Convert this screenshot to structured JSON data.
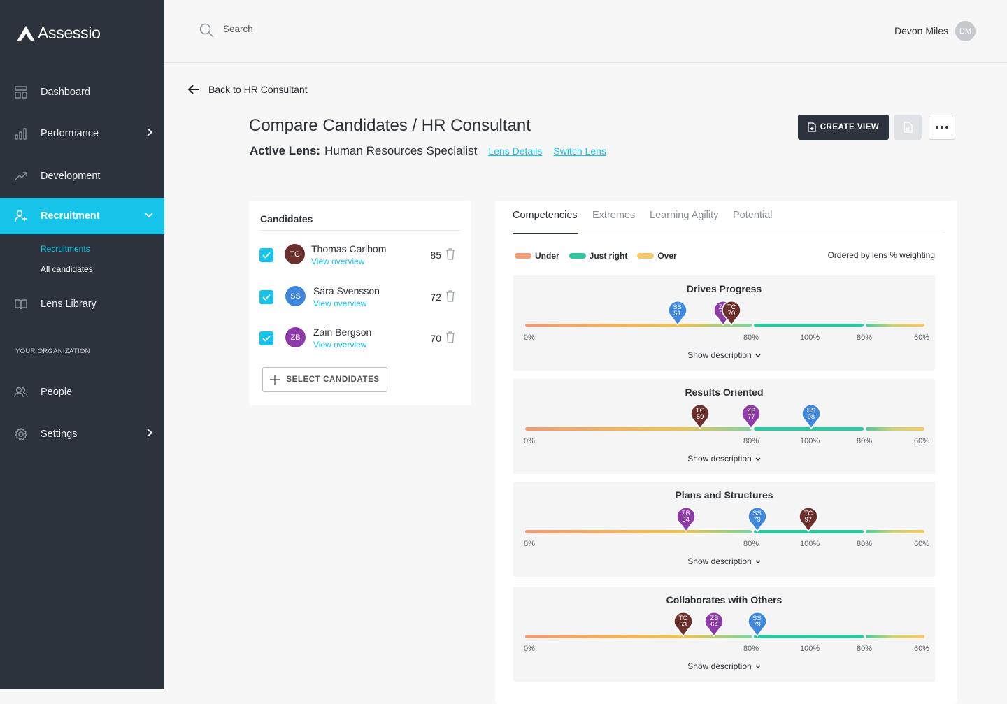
{
  "app": {
    "name": "Assessio"
  },
  "sidebar": {
    "items": [
      {
        "label": "Dashboard"
      },
      {
        "label": "Performance"
      },
      {
        "label": "Development"
      },
      {
        "label": "Recruitment"
      },
      {
        "label": "Lens Library"
      },
      {
        "label": "People"
      },
      {
        "label": "Settings"
      }
    ],
    "sub_items": [
      {
        "label": "Recruitments"
      },
      {
        "label": "All candidates"
      }
    ],
    "org_label": "YOUR ORGANIZATION"
  },
  "topbar": {
    "search_placeholder": "Search",
    "user_name": "Devon Miles",
    "user_initials": "DM"
  },
  "page": {
    "back_label": "Back to HR Consultant",
    "title": "Compare Candidates / HR Consultant",
    "active_lens_label": "Active Lens:",
    "active_lens_value": "Human Resources Specialist",
    "lens_details": "Lens Details",
    "switch_lens": "Switch Lens",
    "create_view": "CREATE VIEW"
  },
  "candidates": {
    "title": "Candidates",
    "view_overview": "View overview",
    "select_button": "SELECT CANDIDATES",
    "list": [
      {
        "name": "Thomas Carlbom",
        "initials": "TC",
        "score": "85",
        "color": "#6b2f2c"
      },
      {
        "name": "Sara Svensson",
        "initials": "SS",
        "score": "72",
        "color": "#3f86de"
      },
      {
        "name": "Zain Bergson",
        "initials": "ZB",
        "score": "70",
        "color": "#8e3aa8"
      }
    ]
  },
  "panel": {
    "tabs": [
      {
        "label": "Competencies"
      },
      {
        "label": "Extremes"
      },
      {
        "label": "Learning Agility"
      },
      {
        "label": "Potential"
      }
    ],
    "legend": [
      {
        "label": "Under",
        "color": "#f0a07a"
      },
      {
        "label": "Just right",
        "color": "#2fc7a0"
      },
      {
        "label": "Over",
        "color": "#f5c96a"
      }
    ],
    "ordered_label": "Ordered by lens % weighting",
    "show_description": "Show description",
    "ticks": [
      "0%",
      "80%",
      "100%",
      "80%",
      "60%"
    ],
    "competencies": [
      {
        "name": "Drives Progress",
        "scores": [
          {
            "initials": "SS",
            "value": 51
          },
          {
            "initials": "ZB",
            "value": 67
          },
          {
            "initials": "TC",
            "value": 70
          }
        ]
      },
      {
        "name": "Results Oriented",
        "scores": [
          {
            "initials": "TC",
            "value": 59
          },
          {
            "initials": "ZB",
            "value": 77
          },
          {
            "initials": "SS",
            "value": 98
          }
        ]
      },
      {
        "name": "Plans and Structures",
        "scores": [
          {
            "initials": "ZB",
            "value": 54
          },
          {
            "initials": "SS",
            "value": 79
          },
          {
            "initials": "TC",
            "value": 97
          }
        ]
      },
      {
        "name": "Collaborates with Others",
        "scores": [
          {
            "initials": "TC",
            "value": 53
          },
          {
            "initials": "ZB",
            "value": 64
          },
          {
            "initials": "SS",
            "value": 79
          }
        ]
      }
    ]
  },
  "colors": {
    "accent": "#16c3e9",
    "sidebar": "#2c333d",
    "TC": "#6b2f2c",
    "SS": "#3f86de",
    "ZB": "#8e3aa8"
  }
}
